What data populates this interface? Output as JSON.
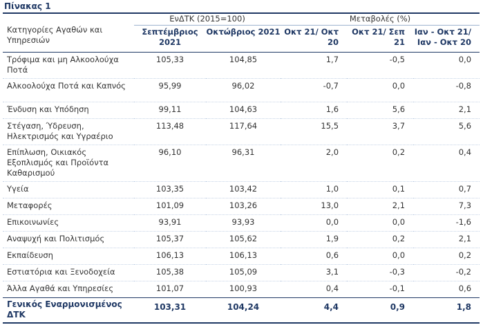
{
  "caption": "Πίνακας 1",
  "header": {
    "category_title": "Κατηγορίες Αγαθών και Υπηρεσιών",
    "index_group": "ΕνΔΤΚ (2015=100)",
    "change_group": "Μεταβολές (%)",
    "col_sep": "Σεπτέμβριος 2021",
    "col_oct": "Οκτώβριος 2021",
    "col_oct21_oct20": "Οκτ 21/ Οκτ 20",
    "col_oct21_sep21": "Οκτ 21/ Σεπ 21",
    "col_jan_oct21": "Ιαν - Οκτ 21/ Ιαν - Οκτ 20"
  },
  "rows": [
    {
      "category": "Τρόφιμα και μη Αλκοολούχα Ποτά",
      "sep": "105,33",
      "oct": "104,85",
      "yoy": "1,7",
      "mom": "-0,5",
      "ytd": "0,0"
    },
    {
      "category": "Αλκοολούχα Ποτά και Καπνός",
      "sep": "95,99",
      "oct": "96,02",
      "yoy": "-0,7",
      "mom": "0,0",
      "ytd": "-0,8"
    },
    {
      "category": "Ένδυση και Υπόδηση",
      "sep": "99,11",
      "oct": "104,63",
      "yoy": "1,6",
      "mom": "5,6",
      "ytd": "2,1"
    },
    {
      "category": "Στέγαση, Ύδρευση, Ηλεκτρισμός και Υγραέριο",
      "sep": "113,48",
      "oct": "117,64",
      "yoy": "15,5",
      "mom": "3,7",
      "ytd": "5,6"
    },
    {
      "category": "Επίπλωση, Οικιακός Εξοπλισμός και Προϊόντα Καθαρισμού",
      "sep": "96,10",
      "oct": "96,31",
      "yoy": "2,0",
      "mom": "0,2",
      "ytd": "0,4"
    },
    {
      "category": "Υγεία",
      "sep": "103,35",
      "oct": "103,42",
      "yoy": "1,0",
      "mom": "0,1",
      "ytd": "0,7"
    },
    {
      "category": "Μεταφορές",
      "sep": "101,09",
      "oct": "103,26",
      "yoy": "13,0",
      "mom": "2,1",
      "ytd": "7,3"
    },
    {
      "category": "Επικοινωνίες",
      "sep": "93,91",
      "oct": "93,93",
      "yoy": "0,0",
      "mom": "0,0",
      "ytd": "-1,6"
    },
    {
      "category": "Αναψυχή και Πολιτισμός",
      "sep": "105,37",
      "oct": "105,62",
      "yoy": "1,9",
      "mom": "0,2",
      "ytd": "2,1"
    },
    {
      "category": "Εκπαίδευση",
      "sep": "106,13",
      "oct": "106,13",
      "yoy": "0,6",
      "mom": "0,0",
      "ytd": "0,2"
    },
    {
      "category": "Εστιατόρια και Ξενοδοχεία",
      "sep": "105,38",
      "oct": "105,09",
      "yoy": "3,1",
      "mom": "-0,3",
      "ytd": "-0,2"
    },
    {
      "category": "Άλλα Αγαθά και Υπηρεσίες",
      "sep": "101,07",
      "oct": "100,93",
      "yoy": "0,4",
      "mom": "-0,1",
      "ytd": "0,6"
    }
  ],
  "total": {
    "category": "Γενικός Εναρμονισμένος ΔΤΚ",
    "sep": "103,31",
    "oct": "104,24",
    "yoy": "4,4",
    "mom": "0,9",
    "ytd": "1,8"
  },
  "colors": {
    "heading": "#1f3864",
    "text": "#333333",
    "rule": "#1f3864"
  }
}
